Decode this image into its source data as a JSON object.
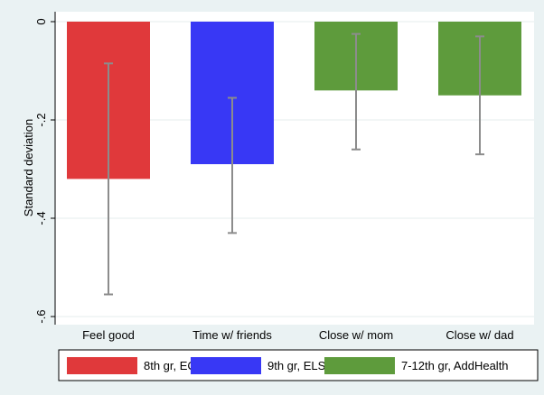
{
  "chart_data": {
    "type": "bar",
    "title": "",
    "xlabel": "",
    "ylabel": "Standard deviation",
    "ylim": [
      -0.6,
      0
    ],
    "yticks": [
      0,
      -0.2,
      -0.4,
      -0.6
    ],
    "ytick_labels": [
      "0",
      "-.2",
      "-.4",
      "-.6"
    ],
    "categories": [
      "Feel good",
      "Time w/ friends",
      "Close w/ mom",
      "Close w/ dad"
    ],
    "values": [
      -0.32,
      -0.29,
      -0.14,
      -0.15
    ],
    "ci_low": [
      -0.555,
      -0.43,
      -0.26,
      -0.27
    ],
    "ci_high": [
      -0.085,
      -0.155,
      -0.025,
      -0.03
    ],
    "series": [
      {
        "name": "8th gr, ECLSK",
        "color": "#e0393b",
        "category_index": 0
      },
      {
        "name": "9th gr, ELS",
        "color": "#3838f5",
        "category_index": 1
      },
      {
        "name": "7-12th gr, AddHealth",
        "color": "#5e9b3c",
        "category_index": 2
      },
      {
        "name": "7-12th gr, AddHealth",
        "color": "#5e9b3c",
        "category_index": 3
      }
    ],
    "legend": [
      "8th gr, ECLSK",
      "9th gr, ELS",
      "7-12th gr, AddHealth"
    ],
    "legend_position": "bottom",
    "grid": true,
    "background": "#eaf2f3",
    "plot_background": "#ffffff",
    "errorbar_color": "#8c8c8c"
  }
}
